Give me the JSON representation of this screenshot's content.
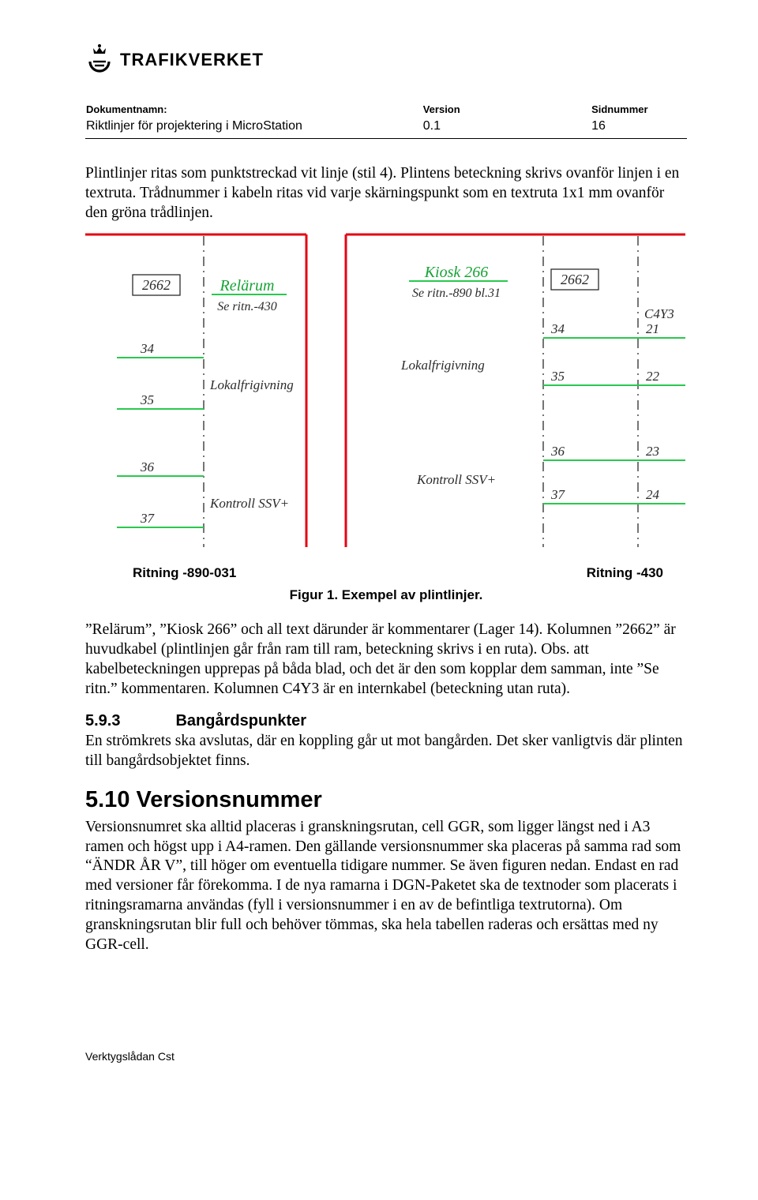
{
  "colors": {
    "red": "#e30613",
    "green": "#29c94d",
    "dark_green": "#17a336",
    "text": "#000000",
    "diagram_text": "#2b2b2b"
  },
  "fonts": {
    "body_size": 19.5,
    "section_size": 20,
    "h2_size": 29,
    "caption_size": 17
  },
  "logo": {
    "brand": "TRAFIKVERKET",
    "logo_size": 22
  },
  "meta": {
    "labels": {
      "docname": "Dokumentnamn:",
      "version": "Version",
      "page": "Sidnummer"
    },
    "values": {
      "docname": "Riktlinjer för projektering i MicroStation",
      "version": "0.1",
      "page": "16"
    }
  },
  "para1": "Plintlinjer ritas som punktstreckad vit linje (stil 4). Plintens beteckning skrivs ovanför linjen i en textruta. Trådnummer i kabeln ritas vid varje skärningspunkt som en textruta 1x1 mm ovanför den gröna trådlinjen.",
  "figure": {
    "left_box": "2662",
    "left_title": "Relärum",
    "left_sub": "Se ritn.-430",
    "right_title": "Kiosk 266",
    "right_sub": "Se ritn.-890 bl.31",
    "right_box": "2662",
    "right_col_header": "C4Y3",
    "left_wires": [
      {
        "n": "34"
      },
      {
        "n": "35"
      },
      {
        "n": "36"
      },
      {
        "n": "37"
      }
    ],
    "right_wires": [
      {
        "a": "34",
        "b": "21"
      },
      {
        "a": "35",
        "b": "22"
      },
      {
        "a": "36",
        "b": "23"
      },
      {
        "a": "37",
        "b": "24"
      }
    ],
    "label_lokal": "Lokalfrigivning",
    "label_kontroll": "Kontroll SSV+",
    "caption_left": "Ritning -890-031",
    "caption_right": "Ritning -430",
    "caption_center": "Figur 1. Exempel av plintlinjer."
  },
  "para2": "”Relärum”, ”Kiosk 266” och all text därunder är kommentarer (Lager 14). Kolumnen ”2662” är huvudkabel (plintlinjen går från ram till ram, beteckning skrivs i en ruta). Obs. att kabelbeteckningen upprepas på båda blad, och det är den som kopplar dem samman, inte ”Se ritn.” kommentaren. Kolumnen C4Y3 är en internkabel (beteckning utan ruta).",
  "section": {
    "num": "5.9.3",
    "title": "Bangårdspunkter"
  },
  "para3": "En strömkrets ska avslutas, där en koppling går ut mot bangården. Det sker vanligtvis där plinten till bangårdsobjektet finns.",
  "h2": "5.10 Versionsnummer",
  "para4": "Versionsnumret ska alltid placeras i granskningsrutan, cell GGR, som ligger längst ned i A3 ramen och högst upp i A4-ramen. Den gällande versionsnummer ska placeras på samma rad som “ÄNDR ÅR V”, till höger om eventuella tidigare nummer. Se även figuren nedan. Endast en rad med versioner får förekomma. I de nya ramarna i DGN-Paketet ska de textnoder som placerats i ritningsramarna användas (fyll i versionsnummer i en av de befintliga textrutorna). Om granskningsrutan blir full och behöver tömmas, ska hela tabellen raderas och ersättas med ny GGR-cell.",
  "footer": "Verktygslådan Cst"
}
